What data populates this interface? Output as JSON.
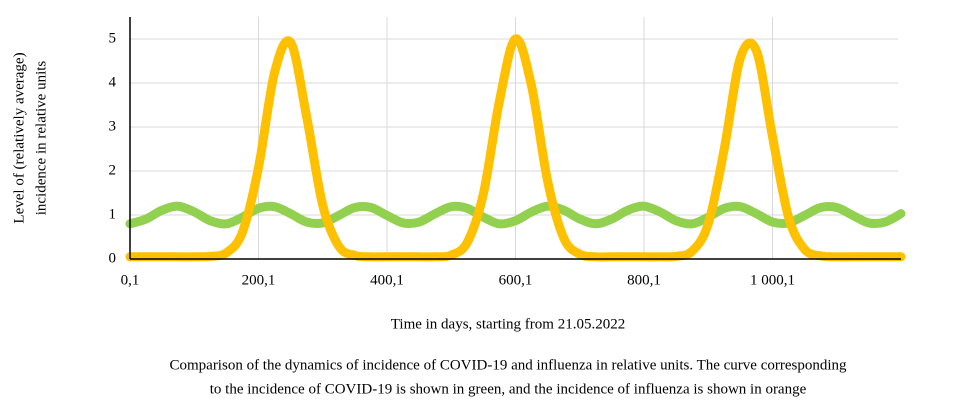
{
  "chart_data": {
    "type": "line",
    "y_label_lines": [
      "Level of (relatively average)",
      "incidence in relative units"
    ],
    "x_label": "Time in days, starting from 21.05.2022",
    "caption_lines": [
      "Comparison of the dynamics of incidence of COVID-19 and influenza in relative units. The curve corresponding",
      "to the incidence of COVID-19 is shown in green, and the incidence of influenza is shown in orange"
    ],
    "x": [
      0.1,
      25.1,
      50.1,
      75.1,
      100.1,
      125.1,
      150.1,
      175.1,
      200.1,
      225.1,
      250.1,
      275.1,
      300.1,
      325.1,
      350.1,
      375.1,
      400.1,
      425.1,
      450.1,
      475.1,
      500.1,
      525.1,
      550.1,
      575.1,
      600.1,
      625.1,
      650.1,
      675.1,
      700.1,
      725.1,
      750.1,
      775.1,
      800.1,
      825.1,
      850.1,
      875.1,
      900.1,
      925.1,
      950.1,
      975.1,
      1000.1,
      1025.1,
      1050.1,
      1075.1,
      1100.1,
      1125.1,
      1150.1,
      1175.1,
      1200.1
    ],
    "series": [
      {
        "color": "#92d050",
        "values": [
          0.8,
          0.91,
          1.11,
          1.2,
          1.07,
          0.87,
          0.8,
          0.95,
          1.15,
          1.19,
          1.03,
          0.84,
          0.82,
          0.99,
          1.17,
          1.17,
          0.99,
          0.82,
          0.84,
          1.03,
          1.19,
          1.15,
          0.95,
          0.8,
          0.87,
          1.07,
          1.2,
          1.11,
          0.91,
          0.8,
          0.91,
          1.11,
          1.2,
          1.07,
          0.87,
          0.8,
          0.95,
          1.15,
          1.19,
          1.03,
          0.84,
          0.82,
          0.99,
          1.17,
          1.17,
          0.99,
          0.82,
          0.84,
          1.03
        ]
      },
      {
        "color": "#ffc000",
        "values": [
          0.05,
          0.05,
          0.05,
          0.05,
          0.05,
          0.06,
          0.14,
          0.61,
          2.08,
          4.24,
          4.92,
          3.23,
          1.22,
          0.29,
          0.08,
          0.05,
          0.05,
          0.05,
          0.05,
          0.05,
          0.09,
          0.38,
          1.48,
          3.59,
          5.0,
          3.93,
          1.77,
          0.48,
          0.11,
          0.05,
          0.05,
          0.05,
          0.05,
          0.05,
          0.06,
          0.18,
          0.8,
          2.51,
          4.57,
          4.73,
          2.78,
          0.95,
          0.22,
          0.07,
          0.05,
          0.05,
          0.05,
          0.05,
          0.05
        ]
      }
    ],
    "xlim": [
      0.1,
      1200.1
    ],
    "xticks": [
      {
        "value": 0.1,
        "label": "0,1"
      },
      {
        "value": 200.1,
        "label": "200,1"
      },
      {
        "value": 400.1,
        "label": "400,1"
      },
      {
        "value": 600.1,
        "label": "600,1"
      },
      {
        "value": 800.1,
        "label": "800,1"
      },
      {
        "value": 1000.1,
        "label": "1 000,1"
      }
    ],
    "ylim": [
      0,
      5.5
    ],
    "yticks": [
      0,
      1,
      2,
      3,
      4,
      5
    ],
    "grid": true
  }
}
